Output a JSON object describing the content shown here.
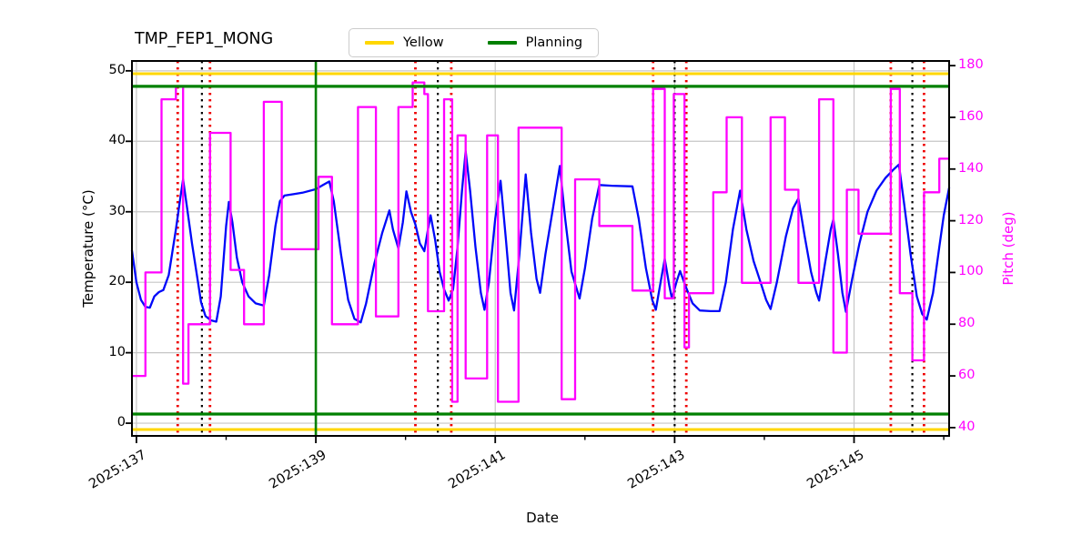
{
  "title": "TMP_FEP1_MONG",
  "legend": {
    "items": [
      {
        "label": "Yellow",
        "color": "#FFD700"
      },
      {
        "label": "Planning",
        "color": "#008000"
      }
    ]
  },
  "axes": {
    "x": {
      "label": "Date"
    },
    "y_left": {
      "label": "Temperature (°C)"
    },
    "y_right": {
      "label": "Pitch (deg)"
    }
  },
  "chart_data": {
    "type": "line",
    "title": "TMP_FEP1_MONG",
    "xlabel": "Date",
    "ylabel_left": "Temperature (°C)",
    "ylabel_right": "Pitch (deg)",
    "grid": true,
    "legend_position": "top-center",
    "xlim": [
      136.95,
      146.06
    ],
    "ylim_left": [
      -1.8,
      51.4
    ],
    "ylim_right": [
      36.8,
      181.8
    ],
    "x_major_ticks": [
      {
        "day": 137,
        "label": "2025:137"
      },
      {
        "day": 139,
        "label": "2025:139"
      },
      {
        "day": 141,
        "label": "2025:141"
      },
      {
        "day": 143,
        "label": "2025:143"
      },
      {
        "day": 145,
        "label": "2025:145"
      }
    ],
    "x_minor_days": [
      138,
      140,
      142,
      144,
      146
    ],
    "yticks_left": [
      0,
      10,
      20,
      30,
      40,
      50
    ],
    "yticks_right": [
      40,
      60,
      80,
      100,
      120,
      140,
      160,
      180
    ],
    "grid_color": "#c6c6c6",
    "limit_lines": {
      "yellow": {
        "label": "Yellow",
        "color": "#FFD700",
        "values": [
          -0.9,
          49.6
        ]
      },
      "planning": {
        "label": "Planning",
        "color": "#008000",
        "values": [
          1.3,
          47.8
        ]
      }
    },
    "vlines": [
      {
        "name": "planning-event",
        "style": "solid",
        "color": "#008000",
        "days": [
          139.0
        ]
      },
      {
        "name": "red-event",
        "style": "dotted",
        "color": "#ee0000",
        "days": [
          137.46,
          137.82,
          140.11,
          140.51,
          142.76,
          143.13,
          145.41,
          145.78
        ]
      },
      {
        "name": "black-event",
        "style": "dotted",
        "color": "#000000",
        "days": [
          137.73,
          140.36,
          143.0,
          145.65
        ]
      }
    ],
    "series": [
      {
        "name": "temperature",
        "color": "#0008fa",
        "axis": "left",
        "step": false,
        "width": 2.3,
        "points": [
          [
            136.95,
            24.5
          ],
          [
            137.0,
            20.0
          ],
          [
            137.05,
            17.5
          ],
          [
            137.1,
            16.5
          ],
          [
            137.15,
            16.4
          ],
          [
            137.2,
            18.0
          ],
          [
            137.25,
            18.6
          ],
          [
            137.3,
            18.9
          ],
          [
            137.36,
            21.0
          ],
          [
            137.44,
            27.5
          ],
          [
            137.49,
            32.0
          ],
          [
            137.52,
            34.6
          ],
          [
            137.56,
            31.0
          ],
          [
            137.62,
            25.5
          ],
          [
            137.68,
            20.5
          ],
          [
            137.72,
            17.2
          ],
          [
            137.77,
            15.2
          ],
          [
            137.83,
            14.6
          ],
          [
            137.89,
            14.4
          ],
          [
            137.94,
            18.0
          ],
          [
            138.0,
            28.0
          ],
          [
            138.03,
            31.4
          ],
          [
            138.07,
            28.5
          ],
          [
            138.12,
            23.5
          ],
          [
            138.18,
            20.0
          ],
          [
            138.25,
            18.0
          ],
          [
            138.33,
            17.0
          ],
          [
            138.42,
            16.7
          ],
          [
            138.48,
            21.0
          ],
          [
            138.55,
            28.0
          ],
          [
            138.6,
            31.5
          ],
          [
            138.65,
            32.3
          ],
          [
            138.75,
            32.5
          ],
          [
            138.85,
            32.7
          ],
          [
            139.0,
            33.2
          ],
          [
            139.08,
            33.8
          ],
          [
            139.15,
            34.3
          ],
          [
            139.2,
            31.5
          ],
          [
            139.28,
            24.0
          ],
          [
            139.36,
            17.5
          ],
          [
            139.43,
            14.8
          ],
          [
            139.5,
            14.3
          ],
          [
            139.56,
            17.0
          ],
          [
            139.65,
            22.5
          ],
          [
            139.74,
            27.0
          ],
          [
            139.82,
            30.2
          ],
          [
            139.86,
            27.5
          ],
          [
            139.92,
            24.8
          ],
          [
            139.97,
            28.5
          ],
          [
            140.01,
            32.9
          ],
          [
            140.06,
            30.0
          ],
          [
            140.11,
            28.2
          ],
          [
            140.16,
            25.5
          ],
          [
            140.21,
            24.4
          ],
          [
            140.25,
            27.5
          ],
          [
            140.28,
            29.5
          ],
          [
            140.33,
            26.0
          ],
          [
            140.38,
            21.5
          ],
          [
            140.43,
            19.0
          ],
          [
            140.48,
            17.4
          ],
          [
            140.53,
            19.0
          ],
          [
            140.58,
            25.0
          ],
          [
            140.63,
            33.0
          ],
          [
            140.67,
            38.6
          ],
          [
            140.72,
            33.0
          ],
          [
            140.78,
            25.0
          ],
          [
            140.84,
            18.5
          ],
          [
            140.88,
            16.1
          ],
          [
            140.93,
            20.0
          ],
          [
            141.0,
            29.0
          ],
          [
            141.06,
            34.4
          ],
          [
            141.12,
            26.0
          ],
          [
            141.17,
            18.5
          ],
          [
            141.21,
            16.0
          ],
          [
            141.27,
            24.0
          ],
          [
            141.34,
            35.3
          ],
          [
            141.4,
            27.0
          ],
          [
            141.46,
            20.5
          ],
          [
            141.5,
            18.5
          ],
          [
            141.56,
            24.0
          ],
          [
            141.65,
            31.0
          ],
          [
            141.72,
            36.5
          ],
          [
            141.78,
            29.0
          ],
          [
            141.85,
            21.5
          ],
          [
            141.94,
            17.7
          ],
          [
            142.0,
            22.0
          ],
          [
            142.08,
            29.0
          ],
          [
            142.16,
            33.8
          ],
          [
            142.3,
            33.7
          ],
          [
            142.53,
            33.6
          ],
          [
            142.6,
            29.0
          ],
          [
            142.68,
            22.0
          ],
          [
            142.75,
            17.5
          ],
          [
            142.79,
            16.1
          ],
          [
            142.85,
            20.5
          ],
          [
            142.89,
            23.3
          ],
          [
            142.94,
            19.5
          ],
          [
            142.97,
            17.7
          ],
          [
            143.02,
            20.0
          ],
          [
            143.06,
            21.6
          ],
          [
            143.12,
            19.5
          ],
          [
            143.2,
            17.0
          ],
          [
            143.28,
            16.0
          ],
          [
            143.4,
            15.9
          ],
          [
            143.5,
            15.9
          ],
          [
            143.57,
            20.0
          ],
          [
            143.65,
            27.5
          ],
          [
            143.73,
            33.0
          ],
          [
            143.8,
            27.5
          ],
          [
            143.88,
            23.0
          ],
          [
            143.95,
            20.3
          ],
          [
            144.02,
            17.5
          ],
          [
            144.07,
            16.2
          ],
          [
            144.14,
            20.0
          ],
          [
            144.24,
            26.5
          ],
          [
            144.32,
            30.5
          ],
          [
            144.38,
            31.9
          ],
          [
            144.45,
            26.5
          ],
          [
            144.52,
            21.5
          ],
          [
            144.58,
            18.5
          ],
          [
            144.61,
            17.4
          ],
          [
            144.68,
            23.0
          ],
          [
            144.74,
            27.5
          ],
          [
            144.77,
            28.9
          ],
          [
            144.82,
            24.0
          ],
          [
            144.87,
            18.5
          ],
          [
            144.91,
            15.8
          ],
          [
            144.98,
            20.5
          ],
          [
            145.06,
            25.5
          ],
          [
            145.15,
            30.0
          ],
          [
            145.25,
            33.0
          ],
          [
            145.35,
            34.8
          ],
          [
            145.44,
            36.0
          ],
          [
            145.5,
            36.7
          ],
          [
            145.56,
            31.0
          ],
          [
            145.63,
            24.0
          ],
          [
            145.7,
            18.0
          ],
          [
            145.76,
            15.5
          ],
          [
            145.81,
            14.7
          ],
          [
            145.88,
            18.5
          ],
          [
            145.95,
            25.0
          ],
          [
            146.0,
            29.5
          ],
          [
            146.06,
            33.4
          ]
        ]
      },
      {
        "name": "pitch",
        "color": "#ff00ff",
        "axis": "right",
        "step": true,
        "width": 2.3,
        "points": [
          [
            136.95,
            60
          ],
          [
            137.1,
            100
          ],
          [
            137.28,
            167
          ],
          [
            137.44,
            172
          ],
          [
            137.52,
            57
          ],
          [
            137.58,
            80
          ],
          [
            137.82,
            154
          ],
          [
            138.05,
            101
          ],
          [
            138.2,
            80
          ],
          [
            138.42,
            166
          ],
          [
            138.62,
            109
          ],
          [
            139.03,
            137
          ],
          [
            139.18,
            80
          ],
          [
            139.47,
            164
          ],
          [
            139.67,
            83
          ],
          [
            139.92,
            164
          ],
          [
            140.08,
            173.5
          ],
          [
            140.21,
            169
          ],
          [
            140.25,
            85
          ],
          [
            140.43,
            167
          ],
          [
            140.52,
            50
          ],
          [
            140.58,
            153
          ],
          [
            140.67,
            59
          ],
          [
            140.91,
            153
          ],
          [
            141.03,
            50
          ],
          [
            141.26,
            156
          ],
          [
            141.74,
            51
          ],
          [
            141.89,
            136
          ],
          [
            142.16,
            118
          ],
          [
            142.53,
            93
          ],
          [
            142.76,
            171
          ],
          [
            142.89,
            90
          ],
          [
            142.99,
            169
          ],
          [
            143.11,
            71
          ],
          [
            143.16,
            92
          ],
          [
            143.43,
            131
          ],
          [
            143.58,
            160
          ],
          [
            143.75,
            96
          ],
          [
            144.07,
            160
          ],
          [
            144.23,
            132
          ],
          [
            144.38,
            96
          ],
          [
            144.61,
            167
          ],
          [
            144.77,
            69
          ],
          [
            144.92,
            132
          ],
          [
            145.05,
            115
          ],
          [
            145.41,
            171
          ],
          [
            145.51,
            92
          ],
          [
            145.65,
            66
          ],
          [
            145.78,
            131
          ],
          [
            145.95,
            144
          ]
        ]
      }
    ]
  }
}
